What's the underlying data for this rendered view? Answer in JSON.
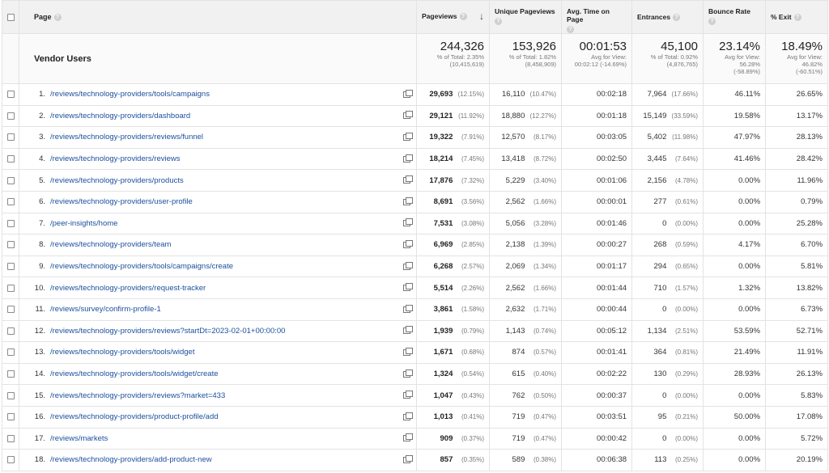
{
  "columns": {
    "page": "Page",
    "pageviews": "Pageviews",
    "unique": "Unique Pageviews",
    "avgtime": "Avg. Time on Page",
    "entrances": "Entrances",
    "bounce": "Bounce Rate",
    "exit": "% Exit",
    "help_glyph": "?",
    "sort_glyph": "↓"
  },
  "totals": {
    "group_label": "Vendor Users",
    "pageviews": {
      "value": "244,326",
      "line1": "% of Total: 2.35%",
      "line2": "(10,415,619)"
    },
    "unique": {
      "value": "153,926",
      "line1": "% of Total: 1.82%",
      "line2": "(8,458,909)"
    },
    "avgtime": {
      "value": "00:01:53",
      "line1": "Avg for View:",
      "line2": "00:02:12 (-14.69%)"
    },
    "entrances": {
      "value": "45,100",
      "line1": "% of Total: 0.92%",
      "line2": "(4,876,765)"
    },
    "bounce": {
      "value": "23.14%",
      "line1": "Avg for View:",
      "line2": "56.28%",
      "line3": "(-58.89%)"
    },
    "exit": {
      "value": "18.49%",
      "line1": "Avg for View:",
      "line2": "46.82%",
      "line3": "(-60.51%)"
    }
  },
  "rows": [
    {
      "idx": "1.",
      "page": "/reviews/technology-providers/tools/campaigns",
      "pv": "29,693",
      "pv_pct": "(12.15%)",
      "upv": "16,110",
      "upv_pct": "(10.47%)",
      "time": "00:02:18",
      "ent": "7,964",
      "ent_pct": "(17.66%)",
      "bounce": "46.11%",
      "exit": "26.65%"
    },
    {
      "idx": "2.",
      "page": "/reviews/technology-providers/dashboard",
      "pv": "29,121",
      "pv_pct": "(11.92%)",
      "upv": "18,880",
      "upv_pct": "(12.27%)",
      "time": "00:01:18",
      "ent": "15,149",
      "ent_pct": "(33.59%)",
      "bounce": "19.58%",
      "exit": "13.17%"
    },
    {
      "idx": "3.",
      "page": "/reviews/technology-providers/reviews/funnel",
      "pv": "19,322",
      "pv_pct": "(7.91%)",
      "upv": "12,570",
      "upv_pct": "(8.17%)",
      "time": "00:03:05",
      "ent": "5,402",
      "ent_pct": "(11.98%)",
      "bounce": "47.97%",
      "exit": "28.13%"
    },
    {
      "idx": "4.",
      "page": "/reviews/technology-providers/reviews",
      "pv": "18,214",
      "pv_pct": "(7.45%)",
      "upv": "13,418",
      "upv_pct": "(8.72%)",
      "time": "00:02:50",
      "ent": "3,445",
      "ent_pct": "(7.64%)",
      "bounce": "41.46%",
      "exit": "28.42%"
    },
    {
      "idx": "5.",
      "page": "/reviews/technology-providers/products",
      "pv": "17,876",
      "pv_pct": "(7.32%)",
      "upv": "5,229",
      "upv_pct": "(3.40%)",
      "time": "00:01:06",
      "ent": "2,156",
      "ent_pct": "(4.78%)",
      "bounce": "0.00%",
      "exit": "11.96%"
    },
    {
      "idx": "6.",
      "page": "/reviews/technology-providers/user-profile",
      "pv": "8,691",
      "pv_pct": "(3.56%)",
      "upv": "2,562",
      "upv_pct": "(1.66%)",
      "time": "00:00:01",
      "ent": "277",
      "ent_pct": "(0.61%)",
      "bounce": "0.00%",
      "exit": "0.79%"
    },
    {
      "idx": "7.",
      "page": "/peer-insights/home",
      "pv": "7,531",
      "pv_pct": "(3.08%)",
      "upv": "5,056",
      "upv_pct": "(3.28%)",
      "time": "00:01:46",
      "ent": "0",
      "ent_pct": "(0.00%)",
      "bounce": "0.00%",
      "exit": "25.28%"
    },
    {
      "idx": "8.",
      "page": "/reviews/technology-providers/team",
      "pv": "6,969",
      "pv_pct": "(2.85%)",
      "upv": "2,138",
      "upv_pct": "(1.39%)",
      "time": "00:00:27",
      "ent": "268",
      "ent_pct": "(0.59%)",
      "bounce": "4.17%",
      "exit": "6.70%"
    },
    {
      "idx": "9.",
      "page": "/reviews/technology-providers/tools/campaigns/create",
      "pv": "6,268",
      "pv_pct": "(2.57%)",
      "upv": "2,069",
      "upv_pct": "(1.34%)",
      "time": "00:01:17",
      "ent": "294",
      "ent_pct": "(0.65%)",
      "bounce": "0.00%",
      "exit": "5.81%"
    },
    {
      "idx": "10.",
      "page": "/reviews/technology-providers/request-tracker",
      "pv": "5,514",
      "pv_pct": "(2.26%)",
      "upv": "2,562",
      "upv_pct": "(1.66%)",
      "time": "00:01:44",
      "ent": "710",
      "ent_pct": "(1.57%)",
      "bounce": "1.32%",
      "exit": "13.82%"
    },
    {
      "idx": "11.",
      "page": "/reviews/survey/confirm-profile-1",
      "pv": "3,861",
      "pv_pct": "(1.58%)",
      "upv": "2,632",
      "upv_pct": "(1.71%)",
      "time": "00:00:44",
      "ent": "0",
      "ent_pct": "(0.00%)",
      "bounce": "0.00%",
      "exit": "6.73%"
    },
    {
      "idx": "12.",
      "page": "/reviews/technology-providers/reviews?startDt=2023-02-01+00:00:00",
      "pv": "1,939",
      "pv_pct": "(0.79%)",
      "upv": "1,143",
      "upv_pct": "(0.74%)",
      "time": "00:05:12",
      "ent": "1,134",
      "ent_pct": "(2.51%)",
      "bounce": "53.59%",
      "exit": "52.71%"
    },
    {
      "idx": "13.",
      "page": "/reviews/technology-providers/tools/widget",
      "pv": "1,671",
      "pv_pct": "(0.68%)",
      "upv": "874",
      "upv_pct": "(0.57%)",
      "time": "00:01:41",
      "ent": "364",
      "ent_pct": "(0.81%)",
      "bounce": "21.49%",
      "exit": "11.91%"
    },
    {
      "idx": "14.",
      "page": "/reviews/technology-providers/tools/widget/create",
      "pv": "1,324",
      "pv_pct": "(0.54%)",
      "upv": "615",
      "upv_pct": "(0.40%)",
      "time": "00:02:22",
      "ent": "130",
      "ent_pct": "(0.29%)",
      "bounce": "28.93%",
      "exit": "26.13%"
    },
    {
      "idx": "15.",
      "page": "/reviews/technology-providers/reviews?market=433",
      "pv": "1,047",
      "pv_pct": "(0.43%)",
      "upv": "762",
      "upv_pct": "(0.50%)",
      "time": "00:00:37",
      "ent": "0",
      "ent_pct": "(0.00%)",
      "bounce": "0.00%",
      "exit": "5.83%"
    },
    {
      "idx": "16.",
      "page": "/reviews/technology-providers/product-profile/add",
      "pv": "1,013",
      "pv_pct": "(0.41%)",
      "upv": "719",
      "upv_pct": "(0.47%)",
      "time": "00:03:51",
      "ent": "95",
      "ent_pct": "(0.21%)",
      "bounce": "50.00%",
      "exit": "17.08%"
    },
    {
      "idx": "17.",
      "page": "/reviews/markets",
      "pv": "909",
      "pv_pct": "(0.37%)",
      "upv": "719",
      "upv_pct": "(0.47%)",
      "time": "00:00:42",
      "ent": "0",
      "ent_pct": "(0.00%)",
      "bounce": "0.00%",
      "exit": "5.72%"
    },
    {
      "idx": "18.",
      "page": "/reviews/technology-providers/add-product-new",
      "pv": "857",
      "pv_pct": "(0.35%)",
      "upv": "589",
      "upv_pct": "(0.38%)",
      "time": "00:06:38",
      "ent": "113",
      "ent_pct": "(0.25%)",
      "bounce": "0.00%",
      "exit": "20.19%"
    }
  ]
}
